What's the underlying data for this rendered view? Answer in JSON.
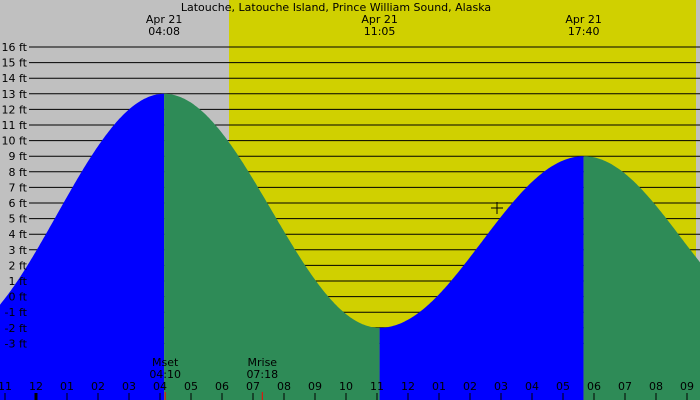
{
  "title": "Latouche, Latouche Island, Prince William Sound, Alaska",
  "colors": {
    "night": "#c0c0c0",
    "day": "#d0d000",
    "rising": "#0000ff",
    "falling": "#2e8b57",
    "grid": "#000000",
    "moon_tick": "#ff0000"
  },
  "tide_labels": [
    {
      "date": "Apr 21",
      "time": "04:08",
      "height_ft": 13,
      "type": "high"
    },
    {
      "date": "Apr 21",
      "time": "11:05",
      "height_ft": -2,
      "type": "low"
    },
    {
      "date": "Apr 21",
      "time": "17:40",
      "height_ft": 9,
      "type": "high"
    }
  ],
  "moon_events": [
    {
      "label": "Mset",
      "time": "04:10"
    },
    {
      "label": "Mrise",
      "time": "07:18"
    }
  ],
  "chart_data": {
    "type": "area",
    "title": "Latouche, Latouche Island, Prince William Sound, Alaska",
    "xlabel": "",
    "ylabel": "ft",
    "y_ticks": [
      "16 ft",
      "15 ft",
      "14 ft",
      "13 ft",
      "12 ft",
      "11 ft",
      "10 ft",
      "9 ft",
      "8 ft",
      "7 ft",
      "6 ft",
      "5 ft",
      "4 ft",
      "3 ft",
      "2 ft",
      "1 ft",
      "0 ft",
      "-1 ft",
      "-2 ft",
      "-3 ft"
    ],
    "ylim": [
      -3,
      16
    ],
    "x_ticks": [
      "11",
      "12",
      "01",
      "02",
      "03",
      "04",
      "05",
      "06",
      "07",
      "08",
      "09",
      "10",
      "11",
      "12",
      "01",
      "02",
      "03",
      "04",
      "05",
      "06",
      "07",
      "08",
      "09"
    ],
    "grid": true,
    "extremes": [
      {
        "time": "04:08",
        "height": 13,
        "type": "high"
      },
      {
        "time": "11:05",
        "height": -2,
        "type": "low"
      },
      {
        "time": "17:40",
        "height": 9,
        "type": "high"
      }
    ],
    "start_height_approx": 3.2,
    "end_height_approx": 4.8,
    "sunrise_approx": "06:14",
    "series": [
      {
        "name": "rising tide",
        "color": "#0000ff"
      },
      {
        "name": "falling tide",
        "color": "#2e8b57"
      }
    ]
  }
}
